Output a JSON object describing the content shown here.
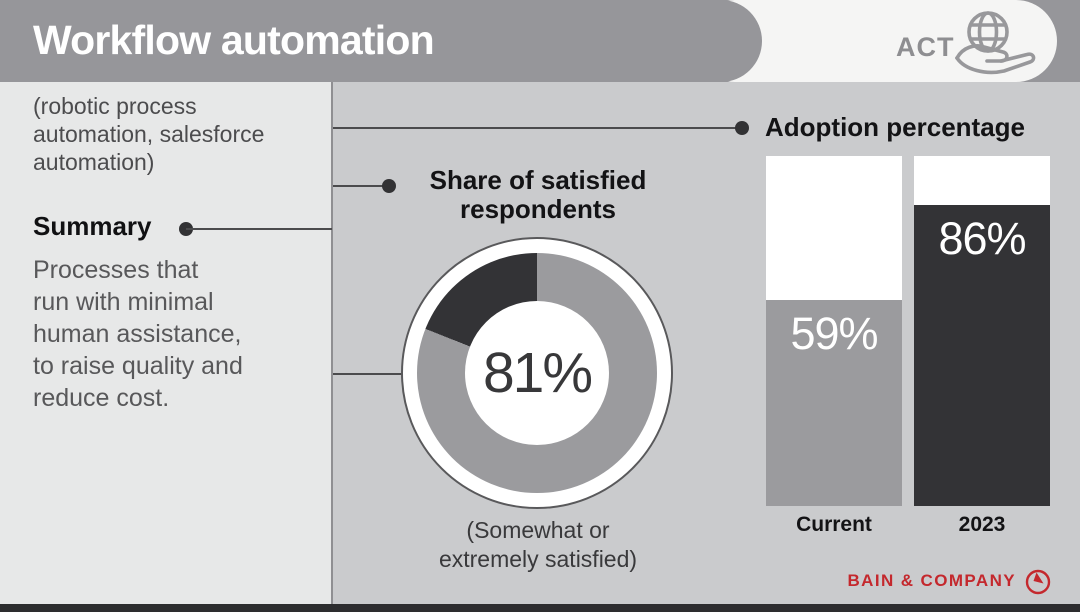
{
  "header": {
    "title": "Workflow automation",
    "badge_label": "ACT",
    "badge_icon": "globe-in-hand-icon"
  },
  "sidebar": {
    "subtitle": "(robotic process\nautomation, salesforce\nautomation)",
    "summary_label": "Summary",
    "summary_text": "Processes that\nrun with minimal\nhuman assistance,\nto raise quality and\nreduce cost."
  },
  "chart_data": [
    {
      "type": "pie",
      "subtype": "donut",
      "title": "Share of satisfied\nrespondents",
      "center_label": "81%",
      "center_value": 81,
      "note": "(Somewhat or\nextremely satisfied)",
      "segments": [
        {
          "name": "Somewhat or extremely satisfied",
          "value": 81,
          "color": "#9b9b9e"
        },
        {
          "name": "Remainder",
          "value": 19,
          "color": "#333336"
        }
      ]
    },
    {
      "type": "bar",
      "title": "Adoption percentage",
      "categories": [
        "Current",
        "2023"
      ],
      "values": [
        59,
        86
      ],
      "value_labels": [
        "59%",
        "86%"
      ],
      "bar_colors": [
        "#9b9b9e",
        "#333336"
      ],
      "track_color": "#ffffff",
      "ylim": [
        0,
        100
      ],
      "legend_position": "none",
      "grid": false
    }
  ],
  "footer": {
    "brand": "BAIN & COMPANY",
    "brand_icon": "bain-compass-icon"
  },
  "colors": {
    "header_band": "#96969a",
    "header_pill": "#f5f5f4",
    "sidebar_bg": "#e7e8e8",
    "main_bg": "#cacbcd",
    "dark_accent": "#333336",
    "mid_gray": "#9b9b9e",
    "brand_red": "#c4282d",
    "bottom_bar": "#2d2d2f"
  }
}
